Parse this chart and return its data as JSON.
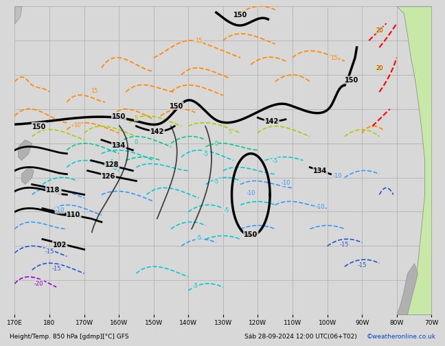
{
  "title_left": "Height/Temp. 850 hPa [gdmp][°C] GFS",
  "title_right": "Sáb 28-09-2024 12:00 UTC(06+T02)",
  "credit": "©weatheronline.co.uk",
  "bg_color": "#d8d8d8",
  "grid_color": "#b8b8b8",
  "fig_width": 6.34,
  "fig_height": 4.9,
  "dpi": 100,
  "xlabel_items": [
    "170E",
    "180",
    "170W",
    "160W",
    "150W",
    "140W",
    "130W",
    "120W",
    "110W",
    "100W",
    "90W",
    "80W",
    "70W"
  ]
}
